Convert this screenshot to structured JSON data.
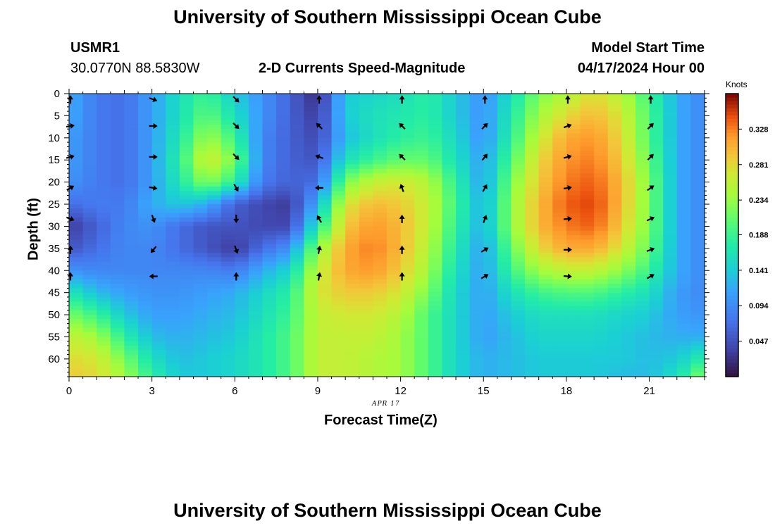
{
  "page": {
    "title_top": "University of Southern Mississippi Ocean Cube",
    "title_bottom": "University of Southern Mississippi Ocean Cube",
    "station_id": "USMR1",
    "station_coords": "30.0770N  88.5830W",
    "model_start_label": "Model Start Time",
    "model_start_value": "04/17/2024 Hour 00",
    "date_annotation": "APR 17"
  },
  "chart_data": {
    "type": "heatmap",
    "title": "2-D Currents Speed-Magnitude",
    "xlabel": "Forecast Time(Z)",
    "ylabel": "Depth (ft)",
    "xlim": [
      0,
      23
    ],
    "ylim": [
      0,
      64
    ],
    "x_ticks": [
      0,
      3,
      6,
      9,
      12,
      15,
      18,
      21
    ],
    "y_ticks": [
      0,
      5,
      10,
      15,
      20,
      25,
      30,
      35,
      40,
      45,
      50,
      55,
      60
    ],
    "colorbar": {
      "label": "Knots",
      "ticks": [
        0.047,
        0.094,
        0.141,
        0.188,
        0.234,
        0.281,
        0.328
      ],
      "range": [
        0.0,
        0.375
      ]
    },
    "speed_field_knots": {
      "times": [
        0,
        1,
        2,
        3,
        4,
        5,
        6,
        7,
        8,
        9,
        10,
        11,
        12,
        13,
        14,
        15,
        16,
        17,
        18,
        19,
        20,
        21,
        22,
        23
      ],
      "depths": [
        0,
        5,
        10,
        15,
        20,
        25,
        30,
        35,
        40,
        45,
        50,
        55,
        60,
        64
      ],
      "values": [
        [
          0.12,
          0.08,
          0.07,
          0.11,
          0.16,
          0.19,
          0.14,
          0.1,
          0.06,
          0.02,
          0.14,
          0.15,
          0.16,
          0.18,
          0.14,
          0.1,
          0.16,
          0.22,
          0.25,
          0.28,
          0.25,
          0.19,
          0.12,
          0.09
        ],
        [
          0.12,
          0.08,
          0.07,
          0.11,
          0.16,
          0.21,
          0.16,
          0.1,
          0.06,
          0.03,
          0.14,
          0.16,
          0.17,
          0.18,
          0.14,
          0.1,
          0.17,
          0.24,
          0.28,
          0.3,
          0.27,
          0.2,
          0.12,
          0.09
        ],
        [
          0.11,
          0.08,
          0.07,
          0.11,
          0.17,
          0.24,
          0.19,
          0.09,
          0.06,
          0.04,
          0.13,
          0.16,
          0.18,
          0.19,
          0.15,
          0.1,
          0.18,
          0.26,
          0.31,
          0.32,
          0.28,
          0.2,
          0.12,
          0.09
        ],
        [
          0.11,
          0.08,
          0.07,
          0.11,
          0.18,
          0.27,
          0.22,
          0.09,
          0.06,
          0.05,
          0.16,
          0.19,
          0.21,
          0.21,
          0.16,
          0.11,
          0.2,
          0.28,
          0.32,
          0.33,
          0.29,
          0.21,
          0.12,
          0.09
        ],
        [
          0.1,
          0.08,
          0.07,
          0.11,
          0.17,
          0.23,
          0.18,
          0.08,
          0.06,
          0.07,
          0.22,
          0.26,
          0.27,
          0.25,
          0.18,
          0.11,
          0.22,
          0.29,
          0.33,
          0.34,
          0.3,
          0.22,
          0.12,
          0.09
        ],
        [
          0.07,
          0.08,
          0.08,
          0.12,
          0.14,
          0.12,
          0.06,
          0.04,
          0.03,
          0.12,
          0.27,
          0.3,
          0.29,
          0.26,
          0.19,
          0.12,
          0.23,
          0.3,
          0.34,
          0.35,
          0.3,
          0.22,
          0.12,
          0.09
        ],
        [
          0.03,
          0.06,
          0.09,
          0.1,
          0.07,
          0.05,
          0.05,
          0.04,
          0.04,
          0.17,
          0.29,
          0.32,
          0.3,
          0.26,
          0.18,
          0.12,
          0.23,
          0.3,
          0.33,
          0.34,
          0.29,
          0.22,
          0.12,
          0.09
        ],
        [
          0.05,
          0.07,
          0.09,
          0.09,
          0.07,
          0.05,
          0.03,
          0.07,
          0.1,
          0.23,
          0.31,
          0.33,
          0.3,
          0.25,
          0.17,
          0.11,
          0.21,
          0.28,
          0.31,
          0.31,
          0.27,
          0.21,
          0.12,
          0.09
        ],
        [
          0.1,
          0.09,
          0.09,
          0.09,
          0.09,
          0.09,
          0.08,
          0.12,
          0.15,
          0.26,
          0.31,
          0.32,
          0.29,
          0.24,
          0.16,
          0.11,
          0.19,
          0.24,
          0.26,
          0.26,
          0.23,
          0.19,
          0.12,
          0.09
        ],
        [
          0.17,
          0.13,
          0.11,
          0.1,
          0.1,
          0.11,
          0.12,
          0.15,
          0.18,
          0.27,
          0.29,
          0.29,
          0.27,
          0.22,
          0.15,
          0.11,
          0.16,
          0.19,
          0.2,
          0.2,
          0.18,
          0.16,
          0.11,
          0.09
        ],
        [
          0.22,
          0.19,
          0.14,
          0.11,
          0.11,
          0.12,
          0.13,
          0.16,
          0.19,
          0.26,
          0.27,
          0.27,
          0.25,
          0.2,
          0.15,
          0.11,
          0.14,
          0.16,
          0.16,
          0.16,
          0.15,
          0.14,
          0.11,
          0.1
        ],
        [
          0.26,
          0.24,
          0.18,
          0.13,
          0.12,
          0.13,
          0.14,
          0.17,
          0.2,
          0.26,
          0.26,
          0.26,
          0.24,
          0.2,
          0.15,
          0.11,
          0.13,
          0.15,
          0.15,
          0.15,
          0.14,
          0.13,
          0.12,
          0.12
        ],
        [
          0.28,
          0.27,
          0.22,
          0.16,
          0.13,
          0.14,
          0.15,
          0.17,
          0.2,
          0.26,
          0.26,
          0.25,
          0.24,
          0.2,
          0.15,
          0.12,
          0.13,
          0.14,
          0.14,
          0.14,
          0.14,
          0.13,
          0.14,
          0.18
        ],
        [
          0.29,
          0.28,
          0.24,
          0.18,
          0.14,
          0.14,
          0.15,
          0.17,
          0.2,
          0.26,
          0.26,
          0.25,
          0.24,
          0.2,
          0.15,
          0.12,
          0.13,
          0.14,
          0.14,
          0.14,
          0.13,
          0.13,
          0.16,
          0.23
        ]
      ]
    },
    "vector_field": {
      "times": [
        0,
        3,
        6,
        9,
        12,
        15,
        18,
        21
      ],
      "arrow_depths": [
        1,
        7,
        14,
        21,
        28,
        35,
        41
      ],
      "directions_deg": [
        [
          0,
          110,
          135,
          0,
          0,
          0,
          0,
          0
        ],
        [
          80,
          90,
          135,
          315,
          315,
          45,
          70,
          45
        ],
        [
          75,
          90,
          135,
          290,
          315,
          40,
          75,
          45
        ],
        [
          60,
          100,
          150,
          270,
          340,
          30,
          80,
          55
        ],
        [
          110,
          160,
          180,
          330,
          0,
          20,
          85,
          65
        ],
        [
          0,
          220,
          160,
          10,
          0,
          60,
          90,
          70
        ],
        [
          0,
          270,
          0,
          10,
          0,
          60,
          95,
          60
        ]
      ]
    }
  }
}
